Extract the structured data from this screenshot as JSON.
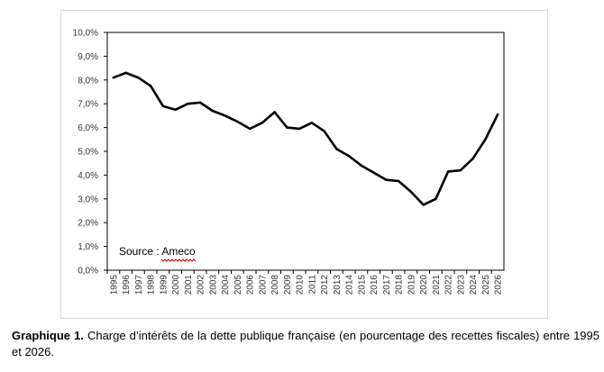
{
  "chart_data": {
    "type": "line",
    "title": "",
    "xlabel": "",
    "ylabel": "",
    "x": [
      "1995",
      "1996",
      "1997",
      "1998",
      "1999",
      "2000",
      "2001",
      "2002",
      "2003",
      "2004",
      "2005",
      "2006",
      "2007",
      "2008",
      "2009",
      "2010",
      "2011",
      "2012",
      "2013",
      "2014",
      "2015",
      "2016",
      "2017",
      "2018",
      "2019",
      "2020",
      "2021",
      "2022",
      "2023",
      "2024",
      "2025",
      "2026"
    ],
    "series": [
      {
        "values": [
          8.1,
          8.3,
          8.1,
          7.75,
          6.9,
          6.75,
          7.0,
          7.05,
          6.7,
          6.5,
          6.25,
          5.95,
          6.2,
          6.65,
          6.0,
          5.95,
          6.2,
          5.85,
          5.1,
          4.8,
          4.4,
          4.1,
          3.8,
          3.75,
          3.3,
          2.75,
          3.0,
          4.15,
          4.2,
          4.7,
          5.5,
          6.55
        ]
      }
    ],
    "ylim": [
      0,
      10
    ],
    "yticks": [
      "0,0%",
      "1,0%",
      "2,0%",
      "3,0%",
      "4,0%",
      "5,0%",
      "6,0%",
      "7,0%",
      "8,0%",
      "9,0%",
      "10,0%"
    ],
    "grid": false,
    "legend": "none",
    "line_color": "#000000",
    "annotation": "Source : Ameco"
  },
  "caption": {
    "label": "Graphique 1.",
    "text": " Charge d’intérêts de la dette publique française (en pourcentage des recettes fiscales) entre 1995 et 2026."
  }
}
